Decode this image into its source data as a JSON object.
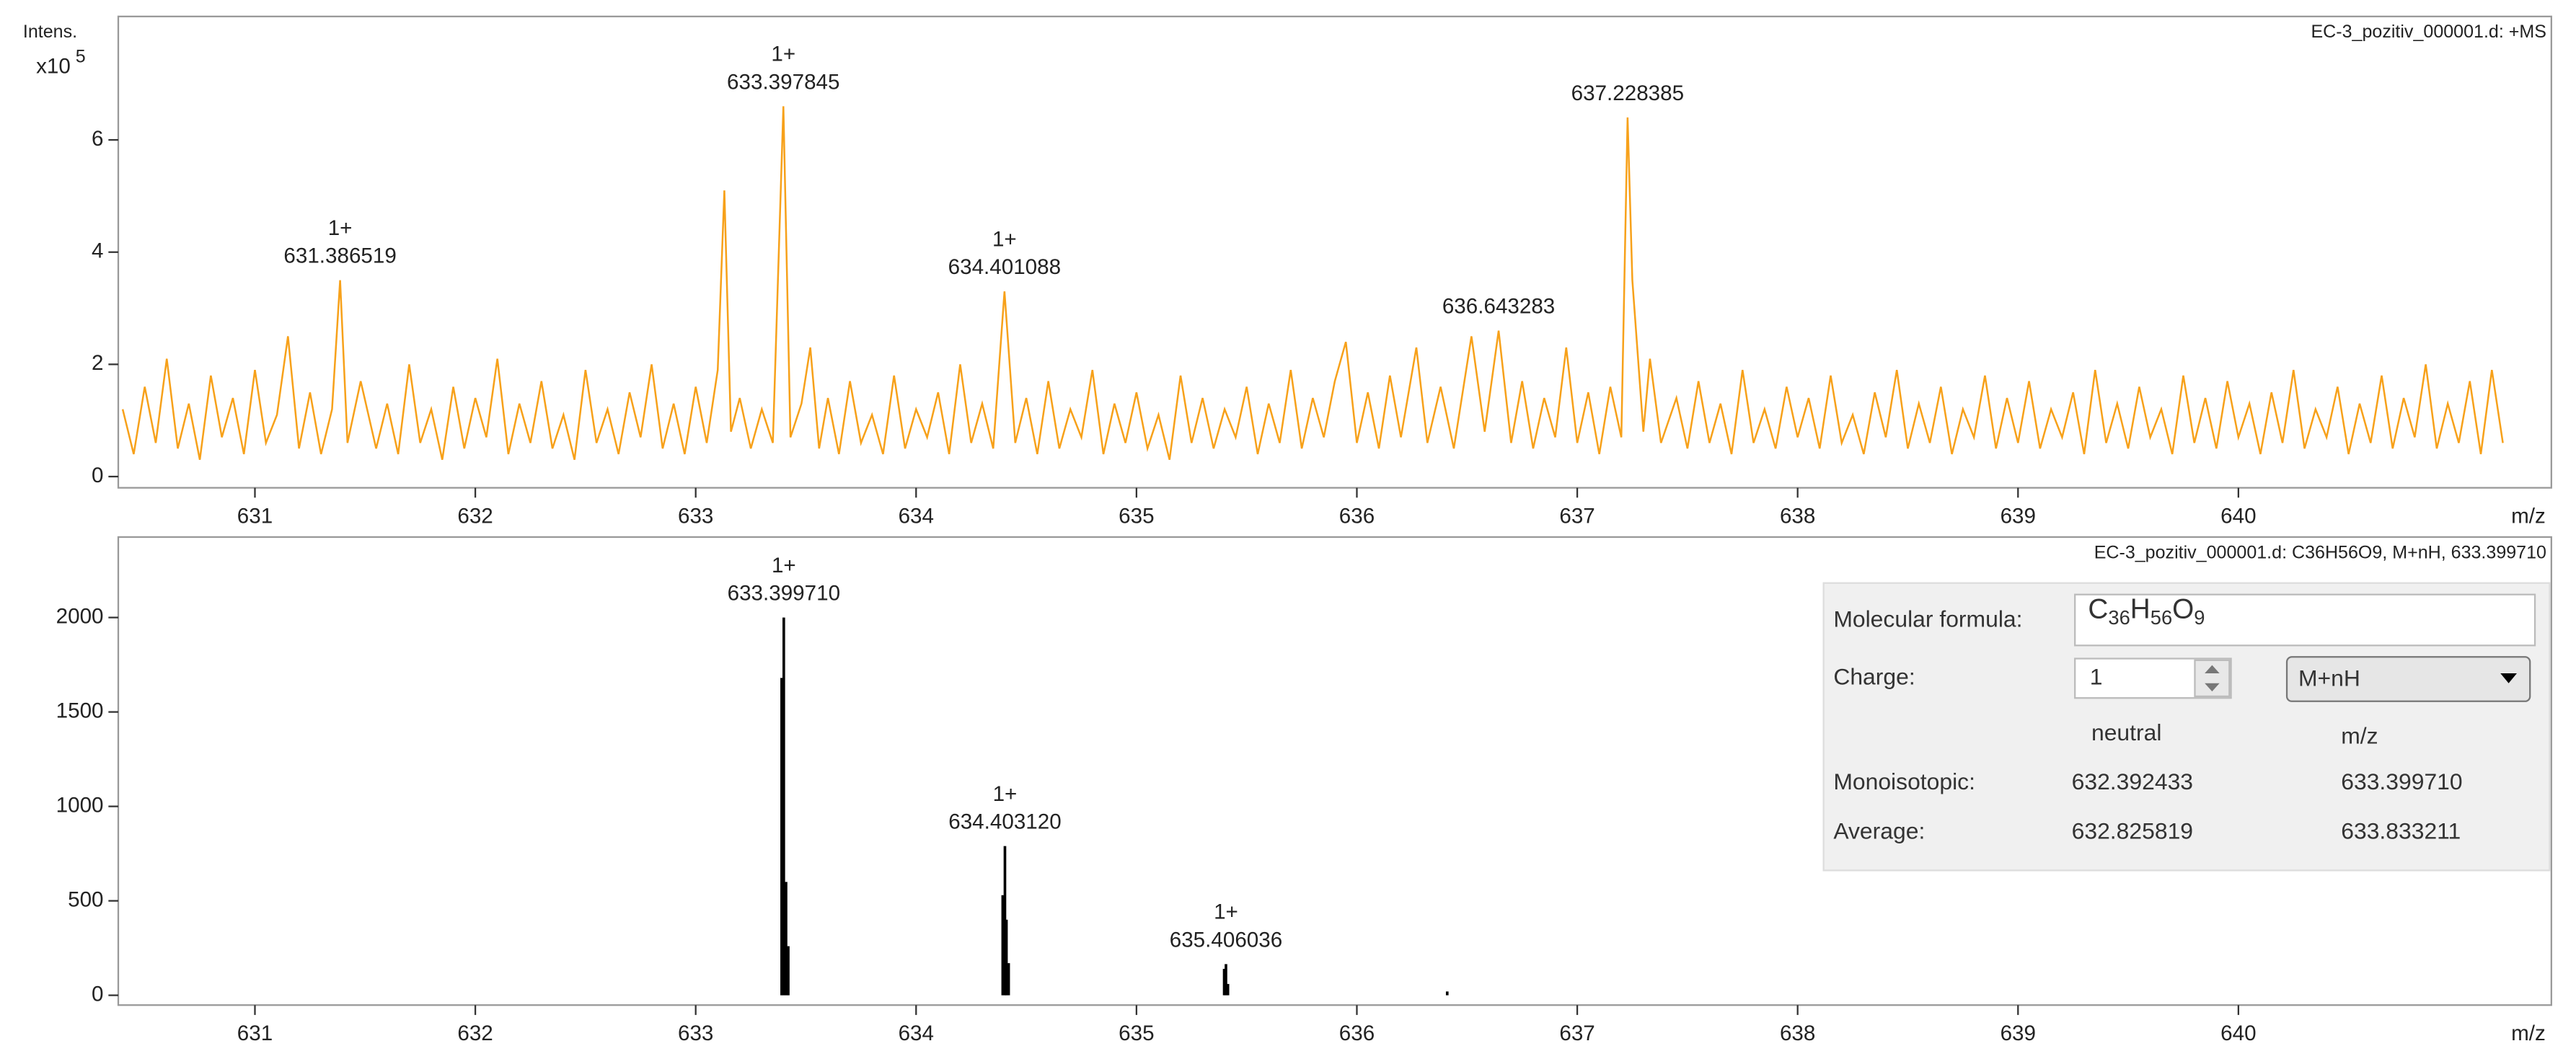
{
  "chart_data": [
    {
      "type": "line",
      "title": "EC-3_pozitiv_000001.d: +MS",
      "y_label": "Intens.",
      "y_multiplier": "x10",
      "y_exponent": "5",
      "x_label": "m/z",
      "color": "#f7a11a",
      "xlim": [
        630.38,
        641.42
      ],
      "xticks": [
        631,
        632,
        633,
        634,
        635,
        636,
        637,
        638,
        639,
        640
      ],
      "ylim": [
        -0.2,
        8.2
      ],
      "yticks": [
        0,
        2,
        4,
        6
      ],
      "x": [
        630.4,
        630.45,
        630.5,
        630.55,
        630.6,
        630.65,
        630.7,
        630.75,
        630.8,
        630.85,
        630.9,
        630.95,
        631.0,
        631.05,
        631.1,
        631.15,
        631.2,
        631.25,
        631.3,
        631.35,
        631.386519,
        631.42,
        631.48,
        631.55,
        631.6,
        631.65,
        631.7,
        631.75,
        631.8,
        631.85,
        631.9,
        631.95,
        632.0,
        632.05,
        632.1,
        632.15,
        632.2,
        632.25,
        632.3,
        632.35,
        632.4,
        632.45,
        632.5,
        632.55,
        632.6,
        632.65,
        632.7,
        632.75,
        632.8,
        632.85,
        632.9,
        632.95,
        633.0,
        633.05,
        633.1,
        633.13,
        633.16,
        633.2,
        633.25,
        633.3,
        633.35,
        633.397845,
        633.43,
        633.48,
        633.52,
        633.56,
        633.6,
        633.65,
        633.7,
        633.75,
        633.8,
        633.85,
        633.9,
        633.95,
        634.0,
        634.05,
        634.1,
        634.15,
        634.2,
        634.25,
        634.3,
        634.35,
        634.401088,
        634.45,
        634.5,
        634.55,
        634.6,
        634.65,
        634.7,
        634.75,
        634.8,
        634.85,
        634.9,
        634.95,
        635.0,
        635.05,
        635.1,
        635.15,
        635.2,
        635.25,
        635.3,
        635.35,
        635.4,
        635.45,
        635.5,
        635.55,
        635.6,
        635.65,
        635.7,
        635.75,
        635.8,
        635.85,
        635.9,
        635.95,
        636.0,
        636.05,
        636.1,
        636.15,
        636.2,
        636.27,
        636.32,
        636.38,
        636.44,
        636.52,
        636.58,
        636.643283,
        636.7,
        636.75,
        636.8,
        636.85,
        636.9,
        636.95,
        637.0,
        637.05,
        637.1,
        637.15,
        637.2,
        637.228385,
        637.25,
        637.3,
        637.33,
        637.38,
        637.45,
        637.5,
        637.55,
        637.6,
        637.65,
        637.7,
        637.75,
        637.8,
        637.85,
        637.9,
        637.95,
        638.0,
        638.05,
        638.1,
        638.15,
        638.2,
        638.25,
        638.3,
        638.35,
        638.4,
        638.45,
        638.5,
        638.55,
        638.6,
        638.65,
        638.7,
        638.75,
        638.8,
        638.85,
        638.9,
        638.95,
        639.0,
        639.05,
        639.1,
        639.15,
        639.2,
        639.25,
        639.3,
        639.35,
        639.4,
        639.45,
        639.5,
        639.55,
        639.6,
        639.65,
        639.7,
        639.75,
        639.8,
        639.85,
        639.9,
        639.95,
        640.0,
        640.05,
        640.1,
        640.15,
        640.2,
        640.25,
        640.3,
        640.35,
        640.4,
        640.45,
        640.5,
        640.55,
        640.6,
        640.65,
        640.7,
        640.75,
        640.8,
        640.85,
        640.9,
        640.95,
        641.0,
        641.05,
        641.1,
        641.15,
        641.2
      ],
      "values": [
        1.2,
        0.4,
        1.6,
        0.6,
        2.1,
        0.5,
        1.3,
        0.3,
        1.8,
        0.7,
        1.4,
        0.4,
        1.9,
        0.6,
        1.1,
        2.5,
        0.5,
        1.5,
        0.4,
        1.2,
        3.5,
        0.6,
        1.7,
        0.5,
        1.3,
        0.4,
        2.0,
        0.6,
        1.2,
        0.3,
        1.6,
        0.5,
        1.4,
        0.7,
        2.1,
        0.4,
        1.3,
        0.6,
        1.7,
        0.5,
        1.1,
        0.3,
        1.9,
        0.6,
        1.2,
        0.4,
        1.5,
        0.7,
        2.0,
        0.5,
        1.3,
        0.4,
        1.6,
        0.6,
        1.9,
        5.1,
        0.8,
        1.4,
        0.5,
        1.2,
        0.6,
        6.6,
        0.7,
        1.3,
        2.3,
        0.5,
        1.4,
        0.4,
        1.7,
        0.6,
        1.1,
        0.4,
        1.8,
        0.5,
        1.2,
        0.7,
        1.5,
        0.4,
        2.0,
        0.6,
        1.3,
        0.5,
        3.3,
        0.6,
        1.4,
        0.4,
        1.7,
        0.5,
        1.2,
        0.7,
        1.9,
        0.4,
        1.3,
        0.6,
        1.5,
        0.5,
        1.1,
        0.3,
        1.8,
        0.6,
        1.4,
        0.5,
        1.2,
        0.7,
        1.6,
        0.4,
        1.3,
        0.6,
        1.9,
        0.5,
        1.4,
        0.7,
        1.7,
        2.4,
        0.6,
        1.5,
        0.5,
        1.8,
        0.7,
        2.3,
        0.6,
        1.6,
        0.5,
        2.5,
        0.8,
        2.6,
        0.6,
        1.7,
        0.5,
        1.4,
        0.7,
        2.3,
        0.6,
        1.5,
        0.4,
        1.6,
        0.7,
        6.4,
        3.5,
        0.8,
        2.1,
        0.6,
        1.4,
        0.5,
        1.7,
        0.6,
        1.3,
        0.4,
        1.9,
        0.6,
        1.2,
        0.5,
        1.6,
        0.7,
        1.4,
        0.5,
        1.8,
        0.6,
        1.1,
        0.4,
        1.5,
        0.7,
        1.9,
        0.5,
        1.3,
        0.6,
        1.6,
        0.4,
        1.2,
        0.7,
        1.8,
        0.5,
        1.4,
        0.6,
        1.7,
        0.5,
        1.2,
        0.7,
        1.5,
        0.4,
        1.9,
        0.6,
        1.3,
        0.5,
        1.6,
        0.7,
        1.2,
        0.4,
        1.8,
        0.6,
        1.4,
        0.5,
        1.7,
        0.7,
        1.3,
        0.4,
        1.5,
        0.6,
        1.9,
        0.5,
        1.2,
        0.7,
        1.6,
        0.4,
        1.3,
        0.6,
        1.8,
        0.5,
        1.4,
        0.7,
        2.0,
        0.5,
        1.3,
        0.6,
        1.7,
        0.4,
        1.9,
        0.6
      ],
      "annotations": [
        {
          "charge": "1+",
          "text": "631.386519",
          "x": 631.386519,
          "y": 3.5
        },
        {
          "charge": "1+",
          "text": "633.397845",
          "x": 633.397845,
          "y": 6.6
        },
        {
          "charge": "1+",
          "text": "634.401088",
          "x": 634.401088,
          "y": 3.3
        },
        {
          "text": "636.643283",
          "x": 636.643283,
          "y": 2.6
        },
        {
          "text": "637.228385",
          "x": 637.228385,
          "y": 6.4
        }
      ]
    },
    {
      "type": "stick",
      "title": "EC-3_pozitiv_000001.d: C36H56O9, M+nH, 633.399710",
      "x_label": "m/z",
      "color": "#000000",
      "xlim": [
        630.38,
        641.42
      ],
      "xticks": [
        631,
        632,
        633,
        634,
        635,
        636,
        637,
        638,
        639,
        640
      ],
      "ylim": [
        -52,
        2426
      ],
      "yticks": [
        0,
        500,
        1000,
        1500,
        2000
      ],
      "x": [
        633.39,
        633.39971,
        633.41,
        633.42,
        634.393,
        634.40312,
        634.41,
        634.42,
        635.398,
        635.406036,
        635.415,
        636.41
      ],
      "values": [
        1680,
        2000,
        600,
        260,
        530,
        790,
        400,
        170,
        140,
        165,
        60,
        20
      ],
      "annotations": [
        {
          "charge": "1+",
          "text": "633.399710",
          "x": 633.39971,
          "y": 2000
        },
        {
          "charge": "1+",
          "text": "634.403120",
          "x": 634.40312,
          "y": 790
        },
        {
          "charge": "1+",
          "text": "635.406036",
          "x": 635.406036,
          "y": 165
        }
      ]
    }
  ],
  "panel": {
    "formula_label": "Molecular formula:",
    "formula_parts": [
      "C",
      "36",
      "H",
      "56",
      "O",
      "9"
    ],
    "charge_label": "Charge:",
    "charge": "1",
    "adduct": "M+nH",
    "columns": [
      "neutral",
      "m/z"
    ],
    "rows": [
      {
        "label": "Monoisotopic:",
        "neutral": "632.392433",
        "mz": "633.399710"
      },
      {
        "label": "Average:",
        "neutral": "632.825819",
        "mz": "633.833211"
      }
    ]
  }
}
